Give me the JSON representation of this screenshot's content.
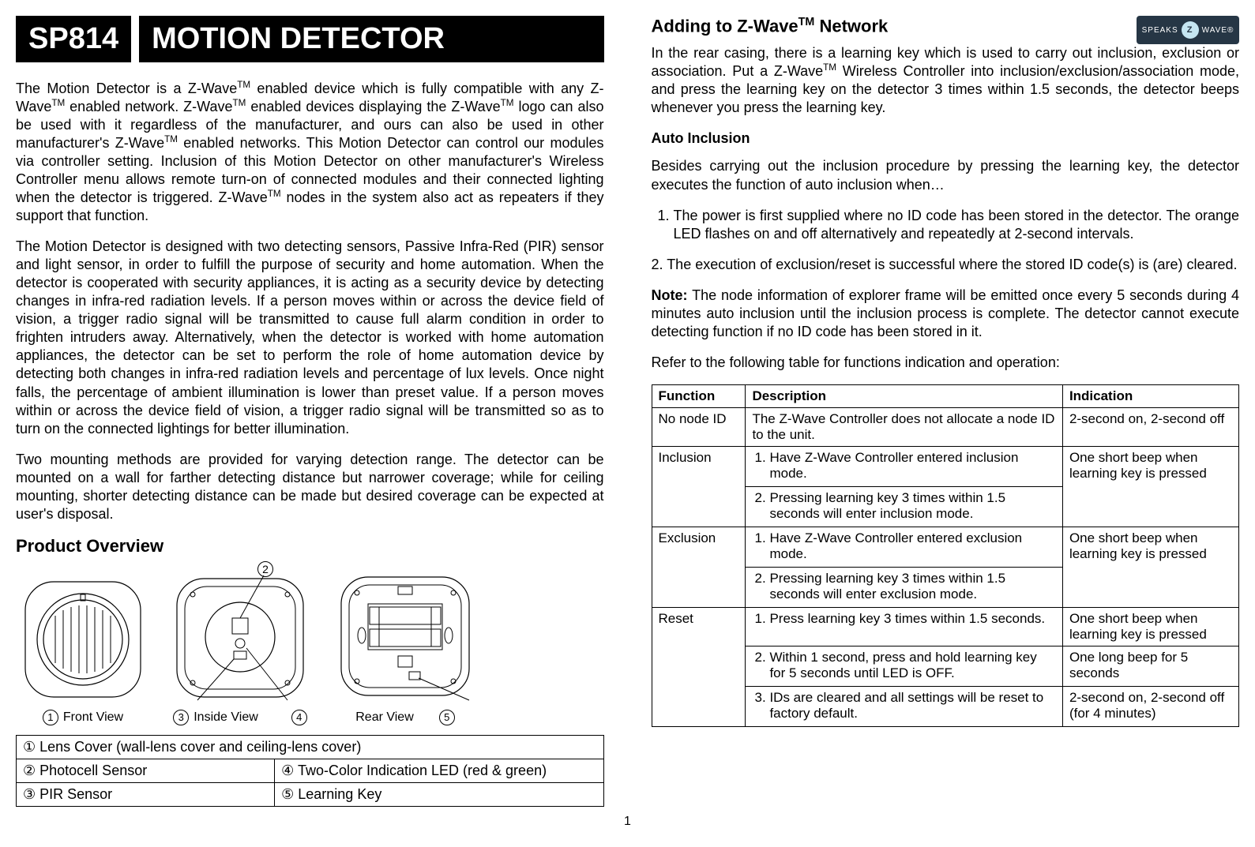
{
  "title": {
    "code": "SP814",
    "name": "MOTION DETECTOR"
  },
  "intro_p1_html": "The Motion Detector is a Z-Wave<span class=\"tm\">TM</span> enabled device which is fully compatible with any Z-Wave<span class=\"tm\">TM</span> enabled network.  Z-Wave<span class=\"tm\">TM</span> enabled devices displaying the Z-Wave<span class=\"tm\">TM</span> logo can also be used with it regardless of the manufacturer, and ours can also be used in other manufacturer's Z-Wave<span class=\"tm\">TM</span> enabled networks.  This Motion Detector can control our modules via controller setting.  Inclusion of this Motion Detector on other manufacturer's Wireless Controller menu allows remote turn-on of connected modules and their connected lighting when the detector is triggered.  Z-Wave<span class=\"tm\">TM</span> nodes in the system also act as repeaters if they support that function.",
  "intro_p2": "The Motion Detector is designed with two detecting sensors, Passive Infra-Red (PIR) sensor and light sensor, in order to fulfill the purpose of security and home automation.  When the detector is cooperated with security appliances, it is acting as a security device by detecting changes in infra-red radiation levels.  If a person moves within or across the device field of vision, a trigger radio signal will be transmitted to cause full alarm condition in order to frighten intruders away. Alternatively, when the detector is worked with home automation appliances, the detector can be set to perform the role of home automation device by detecting both changes in infra-red radiation levels and percentage of lux levels.  Once night falls, the percentage of ambient illumination is lower than preset value.  If a person moves within or across the device field of vision, a trigger radio signal will be transmitted so as to turn on the connected lightings for better illumination.",
  "intro_p3": "Two mounting methods are provided for varying detection range.  The detector can be mounted on a wall for farther detecting distance but narrower coverage; while for ceiling mounting, shorter detecting distance can be made but desired coverage can be expected at user's disposal.",
  "product_overview_header": "Product Overview",
  "views": {
    "front": "Front View",
    "inside": "Inside View",
    "rear": "Rear View"
  },
  "legend": {
    "r1": "① Lens Cover (wall-lens cover and ceiling-lens cover)",
    "r2a": "② Photocell Sensor",
    "r2b": "④ Two-Color Indication LED (red & green)",
    "r3a": "③ PIR Sensor",
    "r3b": "⑤ Learning Key"
  },
  "right": {
    "header_html": "Adding to Z-Wave<span class=\"tm\">TM</span> Network",
    "logo_text": "SPEAKS",
    "logo_center": "Z",
    "logo_after": "WAVE®",
    "p1_html": "In the rear casing, there is a learning key which is used to carry out inclusion, exclusion or association. Put a Z-Wave<span class=\"tm\">TM</span> Wireless Controller into inclusion/exclusion/association mode, and press the learning key on the detector 3 times within 1.5 seconds, the detector beeps whenever you press the learning key.",
    "auto_inclusion": "Auto Inclusion",
    "p2": "Besides carrying out the inclusion procedure by pressing the learning key, the detector executes the function of auto inclusion when…",
    "li1": "The power is first supplied where no ID code has been stored in the detector.  The orange LED flashes on and off alternatively and repeatedly at 2-second intervals.",
    "li2": "2.  The execution of exclusion/reset is successful where the stored ID code(s) is (are) cleared.",
    "note_html": "<b>Note:</b> The node information of explorer frame will be emitted once every 5 seconds during 4 minutes auto inclusion until the inclusion process is complete.  The detector cannot execute detecting function if no ID code has been stored in it.",
    "refer": "Refer to the following table for functions indication and operation:"
  },
  "table": {
    "headers": {
      "c1": "Function",
      "c2": "Description",
      "c3": "Indication"
    },
    "rows": [
      {
        "func": "No node ID",
        "desc": "The Z-Wave Controller does not allocate a node ID to the unit.",
        "ind": "2-second on, 2-second off"
      },
      {
        "func": "Inclusion",
        "desc_items": [
          "Have Z-Wave Controller entered inclusion mode.",
          "Pressing learning key 3 times within 1.5 seconds will enter inclusion mode."
        ],
        "ind": "One short beep when learning key is pressed"
      },
      {
        "func": "Exclusion",
        "desc_items": [
          "Have Z-Wave Controller entered exclusion mode.",
          "Pressing learning key 3 times within 1.5 seconds will enter exclusion mode."
        ],
        "ind": "One short beep when learning key is pressed"
      },
      {
        "func": "Reset",
        "desc_items": [
          "Press learning key 3 times within 1.5 seconds.",
          "Within 1 second, press and hold learning key for 5 seconds until LED is OFF.",
          "IDs are cleared and all settings will be reset to factory default."
        ],
        "inds": [
          "One short beep when learning key is pressed",
          "One long beep for 5 seconds",
          "2-second on, 2-second off (for 4 minutes)"
        ]
      }
    ]
  },
  "page_number": "1",
  "diagram": {
    "stroke": "#000000",
    "stroke_width": 1.2,
    "bg": "#ffffff"
  }
}
